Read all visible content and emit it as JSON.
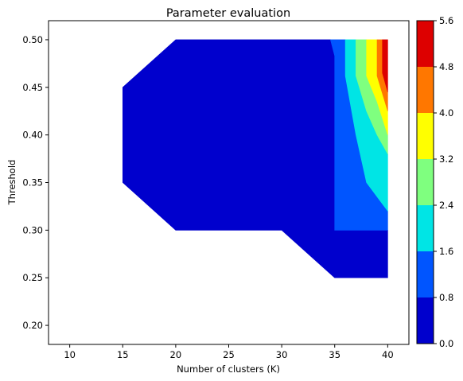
{
  "chart_data": {
    "type": "contour",
    "title": "Parameter evaluation",
    "xlabel": "Number of clusters (K)",
    "ylabel": "Threshold",
    "xlim": [
      8,
      42
    ],
    "ylim": [
      0.18,
      0.52
    ],
    "xticks": [
      "10",
      "15",
      "20",
      "25",
      "30",
      "35",
      "40"
    ],
    "xtick_values": [
      10,
      15,
      20,
      25,
      30,
      35,
      40
    ],
    "yticks": [
      "0.20",
      "0.25",
      "0.30",
      "0.35",
      "0.40",
      "0.45",
      "0.50"
    ],
    "ytick_values": [
      0.2,
      0.25,
      0.3,
      0.35,
      0.4,
      0.45,
      0.5
    ],
    "colorbar": {
      "ticks": [
        "0.0",
        "0.8",
        "1.6",
        "2.4",
        "3.2",
        "4.0",
        "4.8",
        "5.6"
      ],
      "levels": [
        0.0,
        0.8,
        1.6,
        2.4,
        3.2,
        4.0,
        4.8,
        5.6
      ],
      "colors": [
        "#0000cd",
        "#0055ff",
        "#00e5e5",
        "#7fff7f",
        "#ffff00",
        "#ff7700",
        "#dd0000"
      ]
    },
    "regions": [
      {
        "level": "0.0-0.8",
        "color": "#0000cd",
        "points": [
          [
            20,
            0.5
          ],
          [
            34.6,
            0.5
          ],
          [
            35,
            0.483
          ],
          [
            35,
            0.3
          ],
          [
            40,
            0.3
          ],
          [
            40,
            0.25
          ],
          [
            35,
            0.25
          ],
          [
            30,
            0.3
          ],
          [
            20,
            0.3
          ],
          [
            15,
            0.35
          ],
          [
            15,
            0.45
          ]
        ]
      },
      {
        "level": "0.8-1.6",
        "color": "#0055ff",
        "points": [
          [
            34.6,
            0.5
          ],
          [
            36,
            0.5
          ],
          [
            36,
            0.462
          ],
          [
            37,
            0.4
          ],
          [
            38,
            0.35
          ],
          [
            40,
            0.32
          ],
          [
            40,
            0.3
          ],
          [
            35,
            0.3
          ],
          [
            35,
            0.483
          ]
        ]
      },
      {
        "level": "1.6-2.4",
        "color": "#00e5e5",
        "points": [
          [
            36,
            0.5
          ],
          [
            37,
            0.5
          ],
          [
            37,
            0.462
          ],
          [
            38,
            0.425
          ],
          [
            39,
            0.4
          ],
          [
            40,
            0.38
          ],
          [
            40,
            0.32
          ],
          [
            38,
            0.35
          ],
          [
            37,
            0.4
          ],
          [
            36,
            0.462
          ]
        ]
      },
      {
        "level": "2.4-3.2",
        "color": "#7fff7f",
        "points": [
          [
            37,
            0.5
          ],
          [
            38,
            0.5
          ],
          [
            38,
            0.462
          ],
          [
            39,
            0.435
          ],
          [
            40,
            0.4
          ],
          [
            40,
            0.38
          ],
          [
            39,
            0.4
          ],
          [
            38,
            0.425
          ],
          [
            37,
            0.462
          ]
        ]
      },
      {
        "level": "3.2-4.0",
        "color": "#ffff00",
        "points": [
          [
            38,
            0.5
          ],
          [
            39,
            0.5
          ],
          [
            39,
            0.462
          ],
          [
            40,
            0.425
          ],
          [
            40,
            0.4
          ],
          [
            39,
            0.435
          ],
          [
            38,
            0.462
          ]
        ]
      },
      {
        "level": "4.0-4.8",
        "color": "#ff7700",
        "points": [
          [
            39,
            0.5
          ],
          [
            39.5,
            0.5
          ],
          [
            39.5,
            0.465
          ],
          [
            40,
            0.445
          ],
          [
            40,
            0.425
          ],
          [
            39,
            0.462
          ]
        ]
      },
      {
        "level": "4.8-5.6",
        "color": "#dd0000",
        "points": [
          [
            39.5,
            0.5
          ],
          [
            40,
            0.5
          ],
          [
            40,
            0.445
          ],
          [
            39.5,
            0.465
          ]
        ]
      }
    ]
  }
}
